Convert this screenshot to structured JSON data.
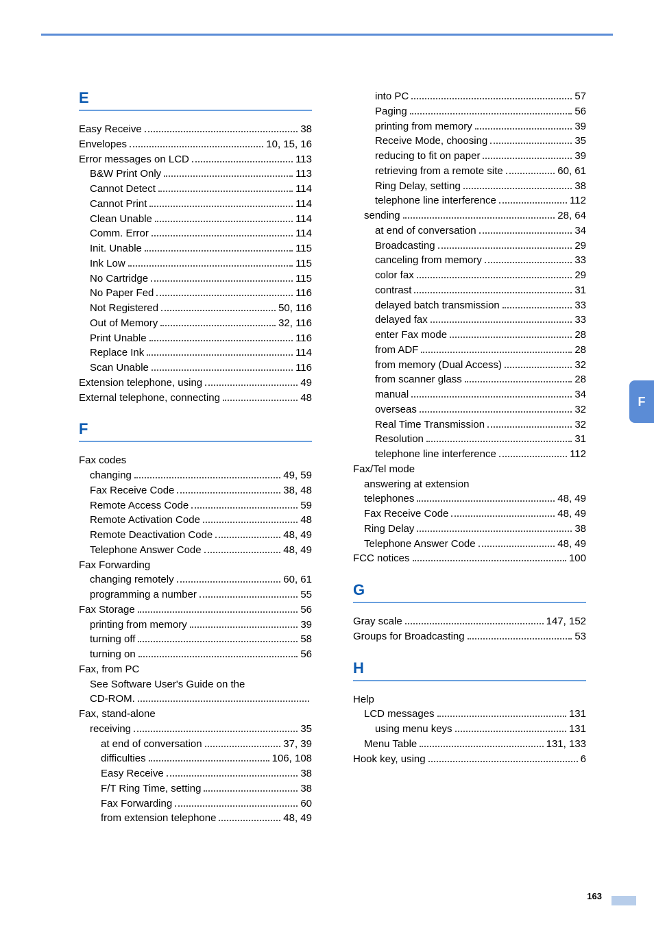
{
  "page_number": "163",
  "side_tab_letter": "F",
  "colors": {
    "accent": "#5b8cd6",
    "heading": "#0b5ab0",
    "light_blue": "#b7cdea",
    "text": "#222222"
  },
  "left_sections": [
    {
      "letter": "E",
      "items": [
        {
          "label": "Easy Receive",
          "pages": "38",
          "level": 0
        },
        {
          "label": "Envelopes",
          "pages": "10, 15, 16",
          "level": 0
        },
        {
          "label": "Error messages on LCD",
          "pages": "113",
          "level": 0
        },
        {
          "label": "B&W Print Only",
          "pages": "113",
          "level": 1
        },
        {
          "label": "Cannot Detect",
          "pages": "114",
          "level": 1
        },
        {
          "label": "Cannot Print",
          "pages": "114",
          "level": 1
        },
        {
          "label": "Clean Unable",
          "pages": "114",
          "level": 1
        },
        {
          "label": "Comm. Error",
          "pages": "114",
          "level": 1
        },
        {
          "label": "Init. Unable",
          "pages": "115",
          "level": 1
        },
        {
          "label": "Ink Low",
          "pages": "115",
          "level": 1
        },
        {
          "label": "No Cartridge",
          "pages": "115",
          "level": 1
        },
        {
          "label": "No Paper Fed",
          "pages": "116",
          "level": 1
        },
        {
          "label": "Not Registered",
          "pages": "50, 116",
          "level": 1
        },
        {
          "label": "Out of Memory",
          "pages": "32, 116",
          "level": 1
        },
        {
          "label": "Print Unable",
          "pages": "116",
          "level": 1
        },
        {
          "label": "Replace Ink",
          "pages": "114",
          "level": 1
        },
        {
          "label": "Scan Unable",
          "pages": "116",
          "level": 1
        },
        {
          "label": "Extension telephone, using",
          "pages": "49",
          "level": 0
        },
        {
          "label": "External telephone, connecting",
          "pages": "48",
          "level": 0
        }
      ]
    },
    {
      "letter": "F",
      "items": [
        {
          "label": "Fax codes",
          "pages": "",
          "level": 0,
          "nopage": true
        },
        {
          "label": "changing",
          "pages": "49, 59",
          "level": 1
        },
        {
          "label": "Fax Receive Code",
          "pages": "38, 48",
          "level": 1
        },
        {
          "label": "Remote Access Code",
          "pages": "59",
          "level": 1
        },
        {
          "label": "Remote Activation Code",
          "pages": "48",
          "level": 1
        },
        {
          "label": "Remote Deactivation Code",
          "pages": "48, 49",
          "level": 1
        },
        {
          "label": "Telephone Answer Code",
          "pages": "48, 49",
          "level": 1
        },
        {
          "label": "Fax Forwarding",
          "pages": "",
          "level": 0,
          "nopage": true
        },
        {
          "label": "changing remotely",
          "pages": "60, 61",
          "level": 1
        },
        {
          "label": "programming a number",
          "pages": "55",
          "level": 1
        },
        {
          "label": "Fax Storage",
          "pages": "56",
          "level": 0
        },
        {
          "label": "printing from memory",
          "pages": "39",
          "level": 1
        },
        {
          "label": "turning off",
          "pages": "58",
          "level": 1
        },
        {
          "label": "turning on",
          "pages": "56",
          "level": 1
        },
        {
          "label": "Fax, from PC",
          "pages": "",
          "level": 0,
          "nopage": true
        },
        {
          "label": "See Software User's Guide on the",
          "pages": "",
          "level": 1,
          "nopage": true
        },
        {
          "label": "CD-ROM.",
          "pages": "",
          "level": 1,
          "dotsOnly": true
        },
        {
          "label": "Fax, stand-alone",
          "pages": "",
          "level": 0,
          "nopage": true
        },
        {
          "label": "receiving",
          "pages": "35",
          "level": 1
        },
        {
          "label": "at end of conversation",
          "pages": "37, 39",
          "level": 2
        },
        {
          "label": "difficulties",
          "pages": "106, 108",
          "level": 2
        },
        {
          "label": "Easy Receive",
          "pages": "38",
          "level": 2
        },
        {
          "label": "F/T Ring Time, setting",
          "pages": "38",
          "level": 2
        },
        {
          "label": "Fax Forwarding",
          "pages": "60",
          "level": 2
        },
        {
          "label": "from extension telephone",
          "pages": "48, 49",
          "level": 2
        }
      ]
    }
  ],
  "right_sections": [
    {
      "letter": null,
      "items": [
        {
          "label": "into PC",
          "pages": "57",
          "level": 2
        },
        {
          "label": "Paging",
          "pages": "56",
          "level": 2
        },
        {
          "label": "printing from memory",
          "pages": "39",
          "level": 2
        },
        {
          "label": "Receive Mode, choosing",
          "pages": "35",
          "level": 2
        },
        {
          "label": "reducing to fit on paper",
          "pages": "39",
          "level": 2
        },
        {
          "label": "retrieving from a remote site",
          "pages": "60, 61",
          "level": 2
        },
        {
          "label": "Ring Delay, setting",
          "pages": "38",
          "level": 2
        },
        {
          "label": "telephone line interference",
          "pages": "112",
          "level": 2
        },
        {
          "label": "sending",
          "pages": "28, 64",
          "level": 1
        },
        {
          "label": "at end of conversation",
          "pages": "34",
          "level": 2
        },
        {
          "label": "Broadcasting",
          "pages": "29",
          "level": 2
        },
        {
          "label": "canceling from memory",
          "pages": "33",
          "level": 2
        },
        {
          "label": "color fax",
          "pages": "29",
          "level": 2
        },
        {
          "label": "contrast",
          "pages": "31",
          "level": 2
        },
        {
          "label": "delayed batch transmission",
          "pages": "33",
          "level": 2
        },
        {
          "label": "delayed fax",
          "pages": "33",
          "level": 2
        },
        {
          "label": "enter Fax mode",
          "pages": "28",
          "level": 2
        },
        {
          "label": "from ADF",
          "pages": "28",
          "level": 2
        },
        {
          "label": "from memory (Dual Access)",
          "pages": "32",
          "level": 2
        },
        {
          "label": "from scanner glass",
          "pages": "28",
          "level": 2
        },
        {
          "label": "manual",
          "pages": "34",
          "level": 2
        },
        {
          "label": "overseas",
          "pages": "32",
          "level": 2
        },
        {
          "label": "Real Time Transmission",
          "pages": "32",
          "level": 2
        },
        {
          "label": "Resolution",
          "pages": "31",
          "level": 2
        },
        {
          "label": "telephone line interference",
          "pages": "112",
          "level": 2
        },
        {
          "label": "Fax/Tel mode",
          "pages": "",
          "level": 0,
          "nopage": true
        },
        {
          "label": "answering at extension",
          "pages": "",
          "level": 1,
          "nopage": true
        },
        {
          "label": "telephones",
          "pages": "48, 49",
          "level": 1
        },
        {
          "label": "Fax Receive Code",
          "pages": "48, 49",
          "level": 1
        },
        {
          "label": "Ring Delay",
          "pages": "38",
          "level": 1
        },
        {
          "label": "Telephone Answer Code",
          "pages": "48, 49",
          "level": 1
        },
        {
          "label": "FCC notices",
          "pages": "100",
          "level": 0
        }
      ]
    },
    {
      "letter": "G",
      "items": [
        {
          "label": "Gray scale",
          "pages": "147, 152",
          "level": 0
        },
        {
          "label": "Groups for Broadcasting",
          "pages": "53",
          "level": 0
        }
      ]
    },
    {
      "letter": "H",
      "items": [
        {
          "label": "Help",
          "pages": "",
          "level": 0,
          "nopage": true
        },
        {
          "label": "LCD messages",
          "pages": "131",
          "level": 1
        },
        {
          "label": "using menu keys",
          "pages": "131",
          "level": 2
        },
        {
          "label": "Menu Table",
          "pages": "131, 133",
          "level": 1
        },
        {
          "label": "Hook key, using",
          "pages": "6",
          "level": 0
        }
      ]
    }
  ]
}
